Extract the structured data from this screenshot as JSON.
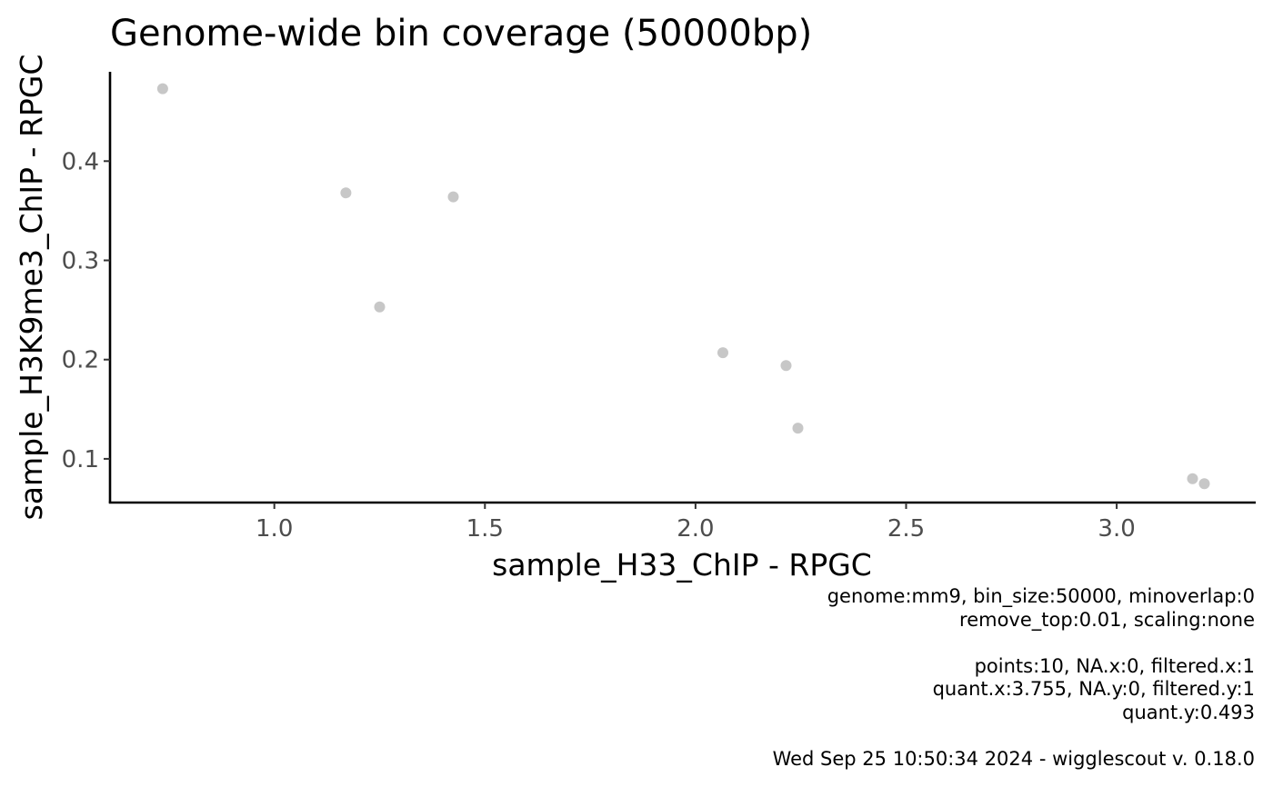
{
  "chart_data": {
    "type": "scatter",
    "title": "Genome-wide bin coverage (50000bp)",
    "xlabel": "sample_H33_ChIP - RPGC",
    "ylabel": "sample_H3K9me3_ChIP - RPGC",
    "xlim": [
      0.61,
      3.33
    ],
    "ylim": [
      0.056,
      0.49
    ],
    "x_ticks": [
      1.0,
      1.5,
      2.0,
      2.5,
      3.0
    ],
    "x_tick_labels": [
      "1.0",
      "1.5",
      "2.0",
      "2.5",
      "3.0"
    ],
    "y_ticks": [
      0.1,
      0.2,
      0.3,
      0.4
    ],
    "y_tick_labels": [
      "0.1",
      "0.2",
      "0.3",
      "0.4"
    ],
    "grid": false,
    "point_color": "#bdbdbd",
    "points": [
      {
        "x": 0.735,
        "y": 0.473
      },
      {
        "x": 1.17,
        "y": 0.368
      },
      {
        "x": 1.425,
        "y": 0.364
      },
      {
        "x": 1.25,
        "y": 0.253
      },
      {
        "x": 2.065,
        "y": 0.207
      },
      {
        "x": 2.215,
        "y": 0.194
      },
      {
        "x": 2.243,
        "y": 0.131
      },
      {
        "x": 3.18,
        "y": 0.08
      },
      {
        "x": 3.208,
        "y": 0.075
      }
    ]
  },
  "caption": {
    "lines": [
      "genome:mm9, bin_size:50000, minoverlap:0",
      "remove_top:0.01, scaling:none",
      "",
      "points:10, NA.x:0, filtered.x:1",
      "quant.x:3.755, NA.y:0, filtered.y:1",
      "quant.y:0.493",
      "",
      "Wed Sep 25 10:50:34 2024 - wigglescout v. 0.18.0"
    ]
  }
}
